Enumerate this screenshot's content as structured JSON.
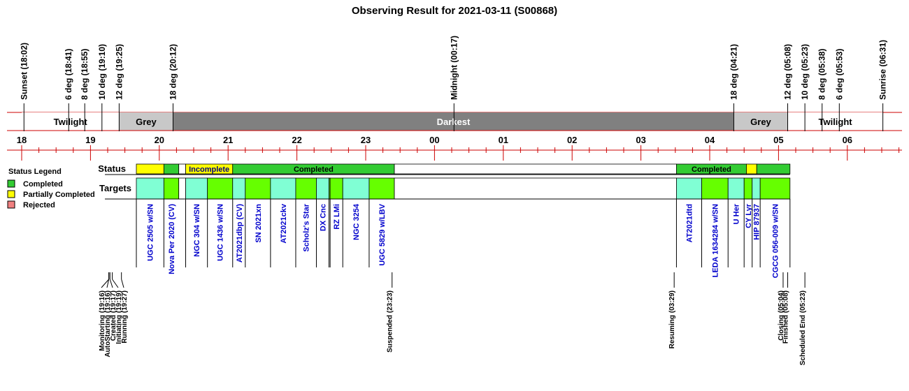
{
  "colors": {
    "twilight": "#ffffff",
    "grey": "#c8c8c8",
    "darkest": "#808080",
    "axis_red": "#cc0000",
    "completed": "#33cc33",
    "partial": "#ffff00",
    "rejected": "#f08080",
    "target_a": "#80ffd4",
    "target_b": "#66ff00",
    "target_text": "#0000cc",
    "suspended_text": "#ff8800"
  },
  "chart_data": {
    "type": "timeline",
    "title": "Observing Result for 2021-03-11 (S00868)",
    "x_axis": {
      "unit": "hour",
      "start": "18:00",
      "end": "06:48"
    },
    "hour_ticks": [
      {
        "t": "18:00",
        "label": "18"
      },
      {
        "t": "19:00",
        "label": "19"
      },
      {
        "t": "20:00",
        "label": "20"
      },
      {
        "t": "21:00",
        "label": "21"
      },
      {
        "t": "22:00",
        "label": "22"
      },
      {
        "t": "23:00",
        "label": "23"
      },
      {
        "t": "24:00",
        "label": "00"
      },
      {
        "t": "25:00",
        "label": "01"
      },
      {
        "t": "26:00",
        "label": "02"
      },
      {
        "t": "27:00",
        "label": "03"
      },
      {
        "t": "28:00",
        "label": "04"
      },
      {
        "t": "29:00",
        "label": "05"
      },
      {
        "t": "30:00",
        "label": "06"
      }
    ],
    "sky_events": [
      {
        "t": "18:02",
        "label": "Sunset (18:02)"
      },
      {
        "t": "18:41",
        "label": "6 deg (18:41)"
      },
      {
        "t": "18:55",
        "label": "8 deg (18:55)"
      },
      {
        "t": "19:10",
        "label": "10 deg (19:10)"
      },
      {
        "t": "19:25",
        "label": "12 deg (19:25)"
      },
      {
        "t": "20:12",
        "label": "18 deg (20:12)"
      },
      {
        "t": "24:17",
        "label": "Midnight (00:17)"
      },
      {
        "t": "28:21",
        "label": "18 deg (04:21)"
      },
      {
        "t": "29:08",
        "label": "12 deg (05:08)"
      },
      {
        "t": "29:23",
        "label": "10 deg (05:23)"
      },
      {
        "t": "29:38",
        "label": "8 deg (05:38)"
      },
      {
        "t": "29:53",
        "label": "6 deg (05:53)"
      },
      {
        "t": "30:31",
        "label": "Sunrise (06:31)"
      }
    ],
    "phases": [
      {
        "start": "18:00",
        "end": "19:25",
        "label": "Twilight",
        "kind": "twilight"
      },
      {
        "start": "19:25",
        "end": "20:12",
        "label": "Grey",
        "kind": "grey"
      },
      {
        "start": "20:12",
        "end": "28:21",
        "label": "Darkest",
        "kind": "darkest"
      },
      {
        "start": "28:21",
        "end": "29:08",
        "label": "Grey",
        "kind": "grey"
      },
      {
        "start": "29:08",
        "end": "30:31",
        "label": "Twilight",
        "kind": "twilight"
      }
    ],
    "status_label": "Status",
    "targets_label": "Targets",
    "status_segments": [
      {
        "start": "19:40",
        "end": "20:04",
        "status": "partial",
        "label": ""
      },
      {
        "start": "20:04",
        "end": "20:17",
        "status": "completed",
        "label": ""
      },
      {
        "start": "20:17",
        "end": "20:23",
        "status": "none",
        "label": ""
      },
      {
        "start": "20:23",
        "end": "21:04",
        "status": "partial",
        "label": "Incomplete"
      },
      {
        "start": "21:04",
        "end": "23:25",
        "status": "completed",
        "label": "Completed"
      },
      {
        "start": "23:25",
        "end": "27:31",
        "status": "none",
        "label": ""
      },
      {
        "start": "27:31",
        "end": "28:32",
        "status": "completed",
        "label": "Completed"
      },
      {
        "start": "28:32",
        "end": "28:41",
        "status": "partial",
        "label": ""
      },
      {
        "start": "28:41",
        "end": "29:10",
        "status": "completed",
        "label": ""
      }
    ],
    "targets": [
      {
        "start": "19:40",
        "end": "20:04",
        "name": "UGC 2505 w/SN",
        "shade": "a"
      },
      {
        "start": "20:04",
        "end": "20:17",
        "name": "Nova Per 2020 (CV)",
        "shade": "b"
      },
      {
        "start": "20:17",
        "end": "20:23",
        "name": "",
        "shade": "none"
      },
      {
        "start": "20:23",
        "end": "20:42",
        "name": "NGC 304 w/SN",
        "shade": "a"
      },
      {
        "start": "20:42",
        "end": "21:04",
        "name": "UGC 1436 w/SN",
        "shade": "b"
      },
      {
        "start": "21:04",
        "end": "21:15",
        "name": "AT2021dbp (CV)",
        "shade": "a"
      },
      {
        "start": "21:15",
        "end": "21:37",
        "name": "SN 2021xn",
        "shade": "b"
      },
      {
        "start": "21:37",
        "end": "21:59",
        "name": "AT2021ckv",
        "shade": "a"
      },
      {
        "start": "21:59",
        "end": "22:17",
        "name": "Scholz's Star",
        "shade": "b"
      },
      {
        "start": "22:17",
        "end": "22:28",
        "name": "DX Cnc",
        "shade": "a"
      },
      {
        "start": "22:28",
        "end": "22:29",
        "name": "",
        "shade": "b"
      },
      {
        "start": "22:29",
        "end": "22:40",
        "name": "RZ LMi",
        "shade": "b"
      },
      {
        "start": "22:40",
        "end": "23:03",
        "name": "NGC 3254",
        "shade": "a"
      },
      {
        "start": "23:03",
        "end": "23:25",
        "name": "UGC 5829 w/LBV",
        "shade": "b"
      },
      {
        "start": "23:25",
        "end": "27:31",
        "name": "",
        "shade": "none"
      },
      {
        "start": "27:31",
        "end": "27:53",
        "name": "AT2021dtd",
        "shade": "a"
      },
      {
        "start": "27:53",
        "end": "28:16",
        "name": "LEDA 1634284 w/SN",
        "shade": "b"
      },
      {
        "start": "28:16",
        "end": "28:30",
        "name": "U Her",
        "shade": "a"
      },
      {
        "start": "28:30",
        "end": "28:37",
        "name": "CY Lyr",
        "shade": "b"
      },
      {
        "start": "28:37",
        "end": "28:44",
        "name": "HIP 87937",
        "shade": "a"
      },
      {
        "start": "28:44",
        "end": "29:10",
        "name": "CGCG 056-009 w/SN",
        "shade": "b"
      }
    ],
    "system_events": [
      {
        "t": "19:16",
        "label": "Monitoring (19:16)",
        "kind": "normal",
        "group": "left"
      },
      {
        "t": "19:16",
        "label": "AutoStarting (19:16)",
        "kind": "normal",
        "group": "left"
      },
      {
        "t": "19:17",
        "label": "Created (19:17)",
        "kind": "normal",
        "group": "left"
      },
      {
        "t": "19:19",
        "label": "Initiating (19:19)",
        "kind": "normal",
        "group": "left"
      },
      {
        "t": "19:27",
        "label": "Running (19:27)",
        "kind": "normal",
        "group": "left"
      },
      {
        "t": "23:23",
        "label": "Suspended (23:23)",
        "kind": "suspended",
        "group": "single"
      },
      {
        "t": "27:29",
        "label": "Resuming (03:29)",
        "kind": "normal",
        "group": "single"
      },
      {
        "t": "29:04",
        "label": "Closing (05:04)",
        "kind": "normal",
        "group": "single"
      },
      {
        "t": "29:08",
        "label": "Finished (05:08)",
        "kind": "normal",
        "group": "single"
      },
      {
        "t": "29:23",
        "label": "Scheduled End (05:23)",
        "kind": "normal",
        "group": "single"
      }
    ],
    "legend": {
      "title": "Status Legend",
      "placement": "left",
      "items": [
        {
          "label": "Completed",
          "status": "completed"
        },
        {
          "label": "Partially Completed",
          "status": "partial"
        },
        {
          "label": "Rejected",
          "status": "rejected"
        }
      ]
    }
  }
}
